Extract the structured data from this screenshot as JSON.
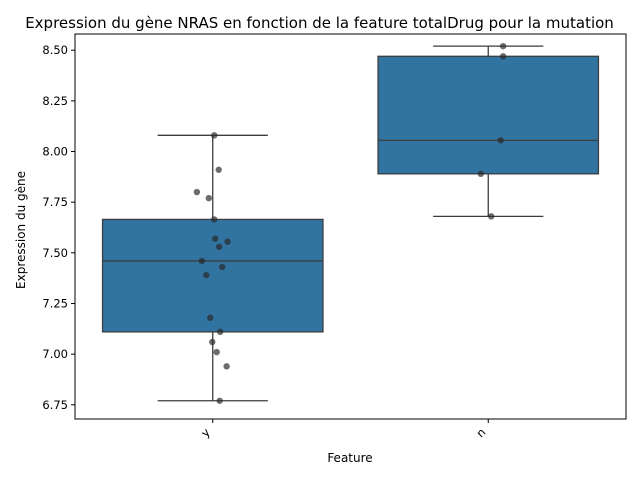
{
  "chart_data": {
    "type": "box",
    "title": "Expression du gène NRAS en fonction de la feature totalDrug pour la mutation",
    "xlabel": "Feature",
    "ylabel": "Expression du gène",
    "ylim": [
      6.68,
      8.58
    ],
    "yticks": [
      "6.75",
      "7.00",
      "7.25",
      "7.50",
      "7.75",
      "8.00",
      "8.25",
      "8.50"
    ],
    "categories": [
      "y",
      "n"
    ],
    "box_color": "#3274a1",
    "boxes": [
      {
        "category": "y",
        "whisker_low": 6.77,
        "q1": 7.11,
        "median": 7.46,
        "q3": 7.665,
        "whisker_high": 8.08
      },
      {
        "category": "n",
        "whisker_low": 7.68,
        "q1": 7.89,
        "median": 8.055,
        "q3": 8.47,
        "whisker_high": 8.52
      }
    ],
    "points": [
      {
        "category": "y",
        "values": [
          8.08,
          7.91,
          7.8,
          7.77,
          7.665,
          7.57,
          7.555,
          7.53,
          7.46,
          7.43,
          7.39,
          7.18,
          7.11,
          7.06,
          7.01,
          6.94,
          6.77
        ]
      },
      {
        "category": "n",
        "values": [
          8.52,
          8.47,
          8.055,
          7.89,
          7.68
        ]
      }
    ]
  }
}
